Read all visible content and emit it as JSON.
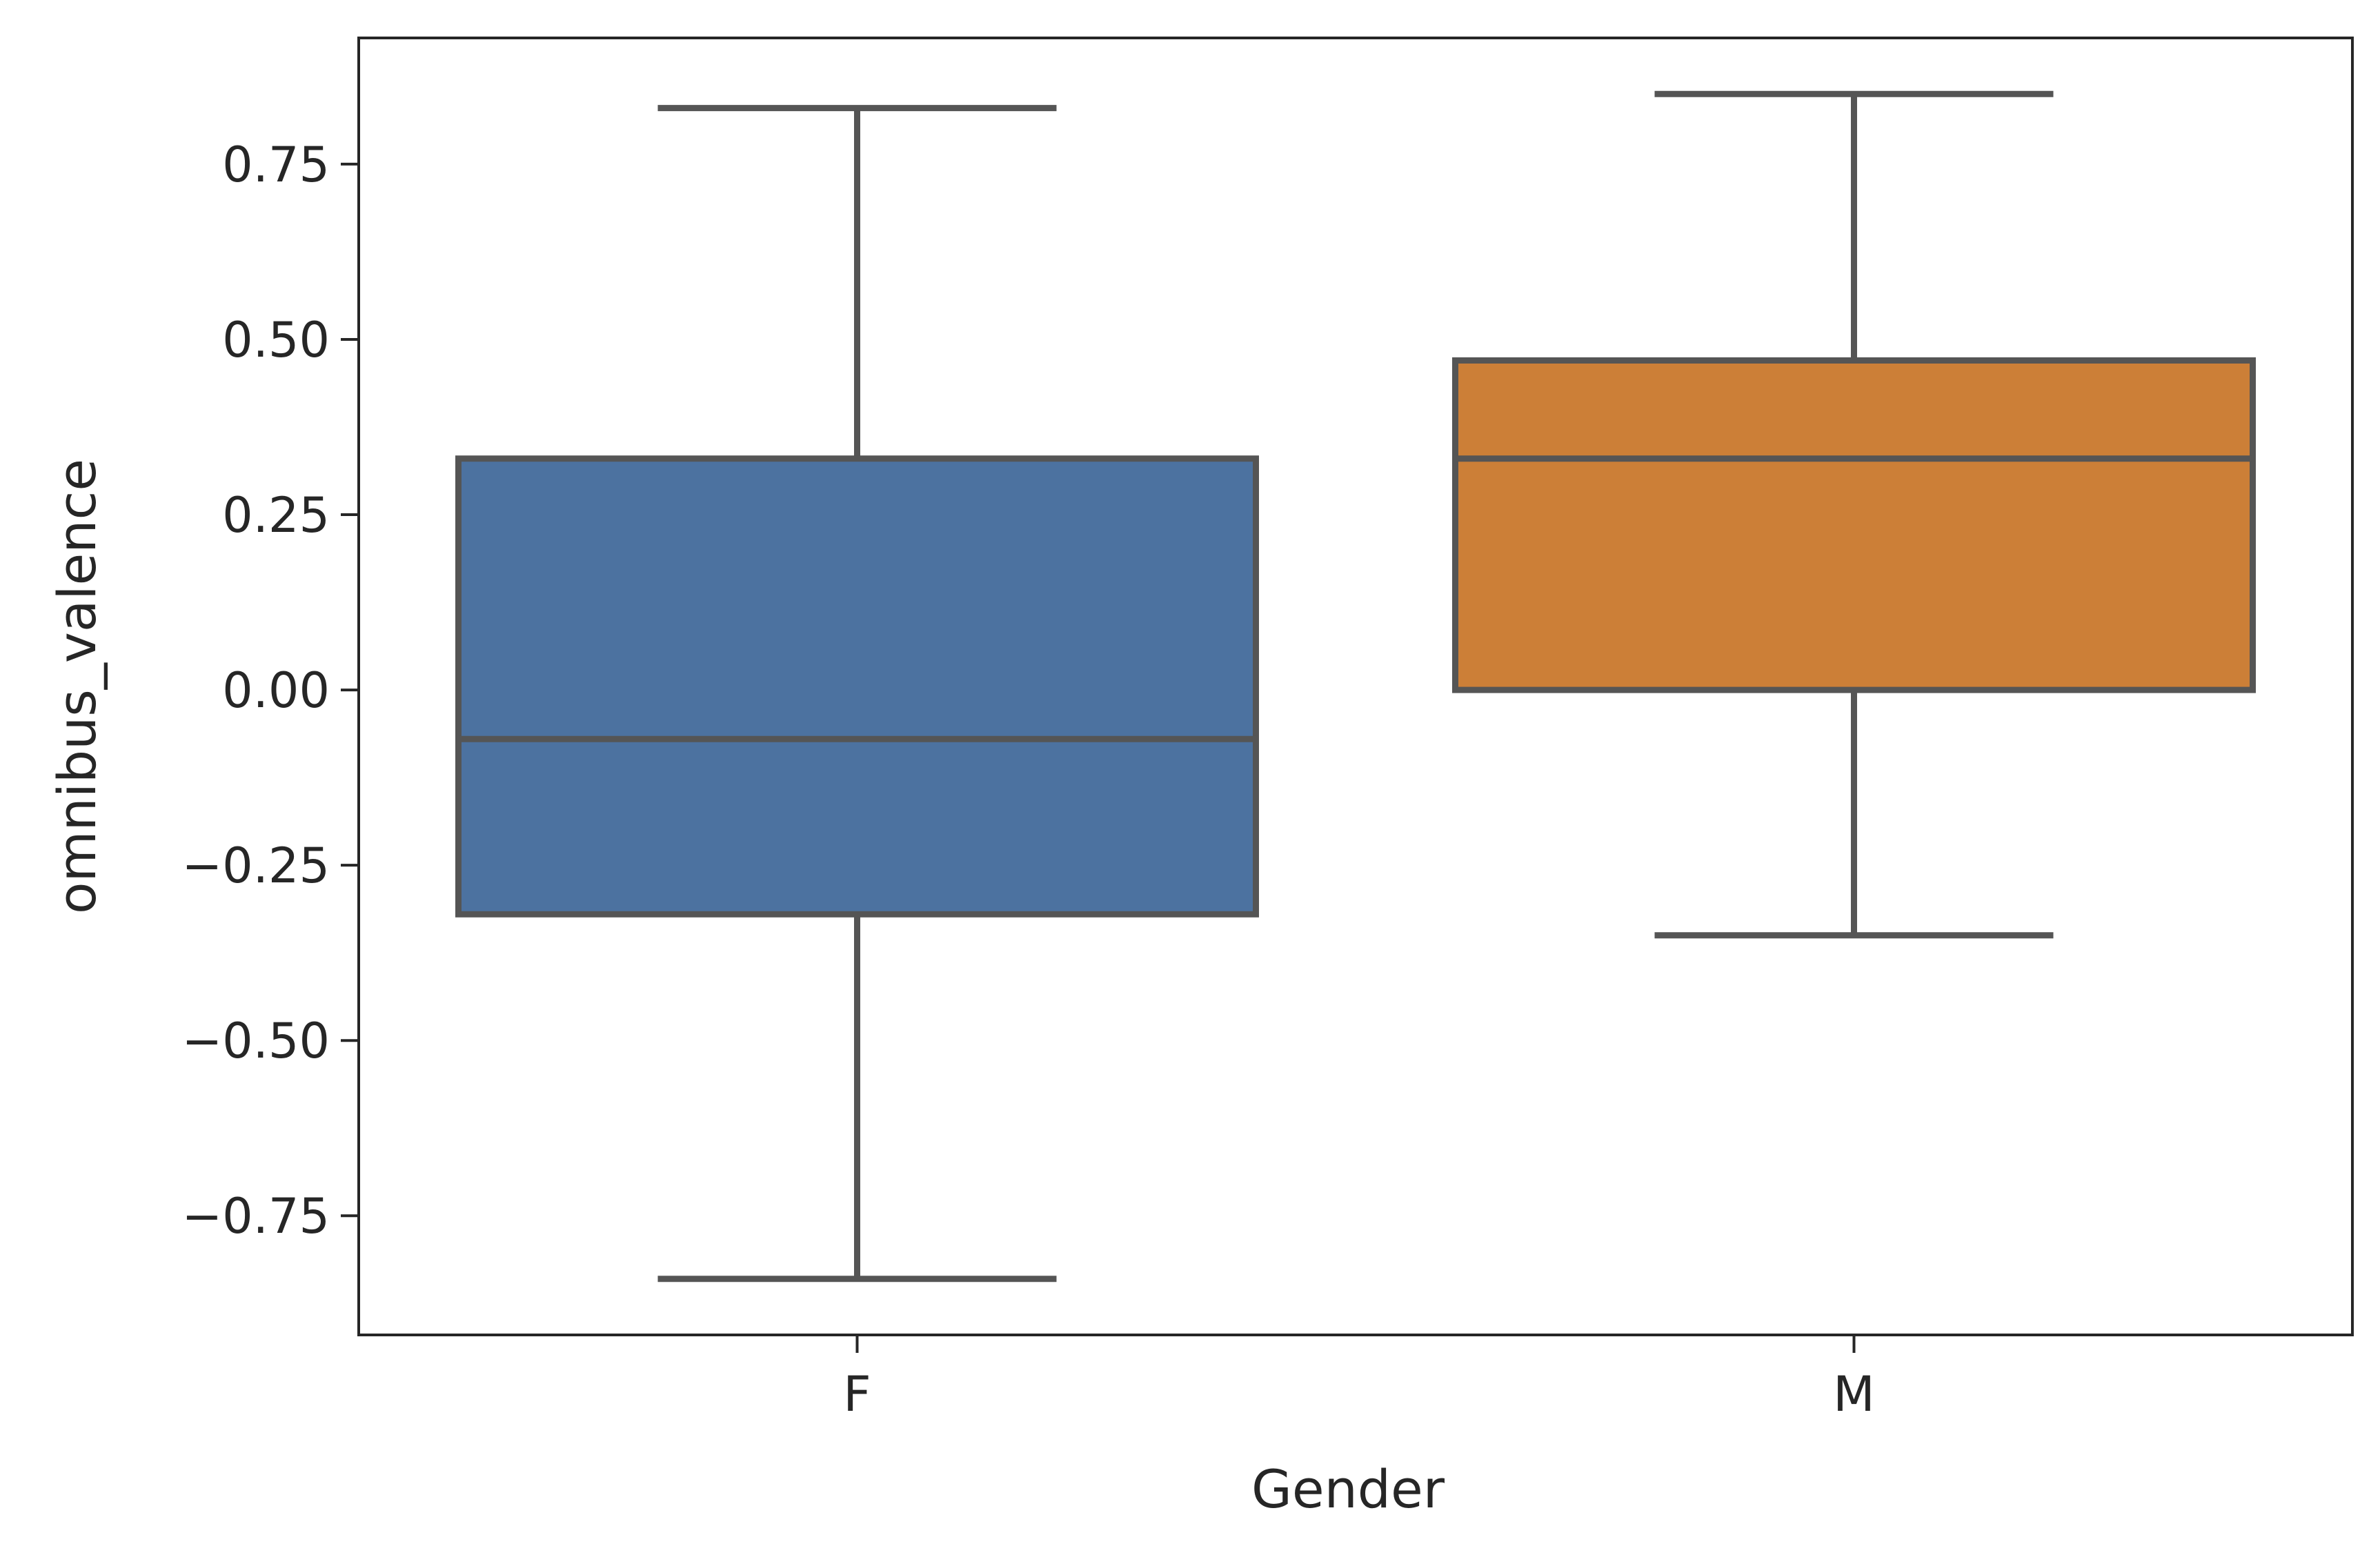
{
  "chart_data": {
    "type": "boxplot",
    "title": "",
    "xlabel": "Gender",
    "ylabel": "omnibus_valence",
    "categories": [
      "F",
      "M"
    ],
    "ylim": [
      -0.92,
      0.93
    ],
    "yticks": [
      -0.75,
      -0.5,
      -0.25,
      0.0,
      0.25,
      0.5,
      0.75
    ],
    "ytick_labels": [
      "−0.75",
      "−0.50",
      "−0.25",
      "0.00",
      "0.25",
      "0.50",
      "0.75"
    ],
    "boxes": [
      {
        "category": "F",
        "whisker_low": -0.84,
        "q1": -0.32,
        "median": -0.07,
        "q3": 0.33,
        "whisker_high": 0.83,
        "color": "#4c72a0"
      },
      {
        "category": "M",
        "whisker_low": -0.35,
        "q1": 0.0,
        "median": 0.33,
        "q3": 0.47,
        "whisker_high": 0.85,
        "color": "#cc7f37"
      }
    ],
    "grid": false,
    "legend": "none"
  }
}
